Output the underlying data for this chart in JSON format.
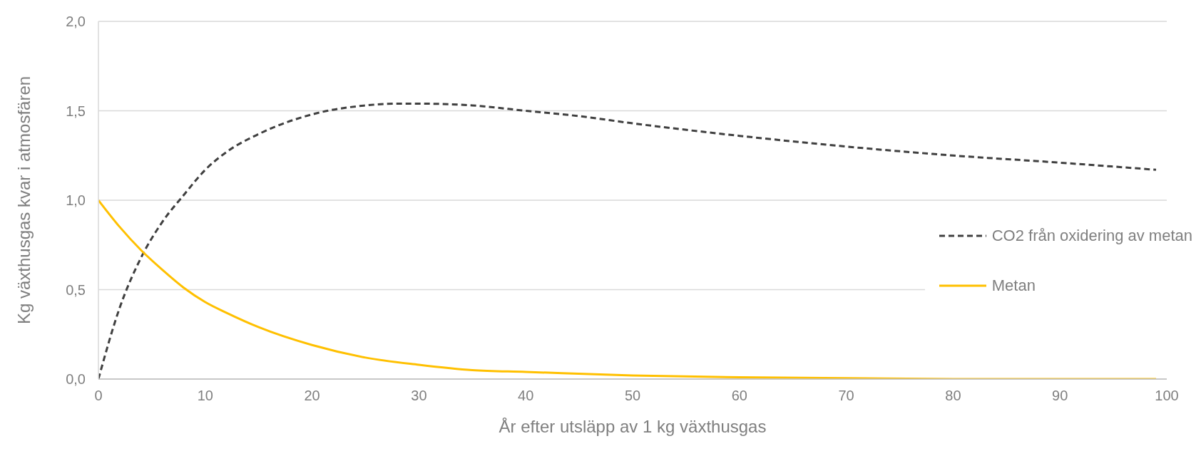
{
  "chart_data": {
    "type": "line",
    "xlabel": "År efter utsläpp av 1 kg växthusgas",
    "ylabel": "Kg växthusgas kvar i atmosfären",
    "xlim": [
      0,
      100
    ],
    "xticks": [
      0,
      10,
      20,
      30,
      40,
      50,
      60,
      70,
      80,
      90,
      100
    ],
    "ylim": [
      0,
      2
    ],
    "yticks": [
      {
        "value": 0,
        "label": "0,0"
      },
      {
        "value": 0.5,
        "label": "0,5"
      },
      {
        "value": 1,
        "label": "1,0"
      },
      {
        "value": 1.5,
        "label": "1,5"
      },
      {
        "value": 2,
        "label": "2,0"
      }
    ],
    "grid": "y",
    "legend": "right",
    "series": [
      {
        "name": "CO2 från oxidering av metan",
        "color": "#404040",
        "line_style": "dashed",
        "x": [
          0,
          2,
          4,
          6,
          8,
          10,
          12,
          15,
          20,
          25,
          28,
          30,
          35,
          40,
          45,
          50,
          60,
          70,
          80,
          90,
          99
        ],
        "values": [
          0,
          0.4,
          0.68,
          0.88,
          1.03,
          1.17,
          1.27,
          1.37,
          1.48,
          1.53,
          1.54,
          1.54,
          1.53,
          1.5,
          1.47,
          1.43,
          1.36,
          1.3,
          1.25,
          1.21,
          1.17
        ]
      },
      {
        "name": "Metan",
        "color": "#ffc000",
        "line_style": "solid",
        "x": [
          0,
          2,
          4,
          6,
          8,
          10,
          12,
          15,
          20,
          25,
          30,
          35,
          40,
          50,
          60,
          70,
          80,
          90,
          99
        ],
        "values": [
          1,
          0.85,
          0.72,
          0.61,
          0.51,
          0.43,
          0.37,
          0.29,
          0.19,
          0.12,
          0.08,
          0.05,
          0.04,
          0.02,
          0.01,
          0.005,
          0,
          0,
          0
        ]
      }
    ]
  }
}
